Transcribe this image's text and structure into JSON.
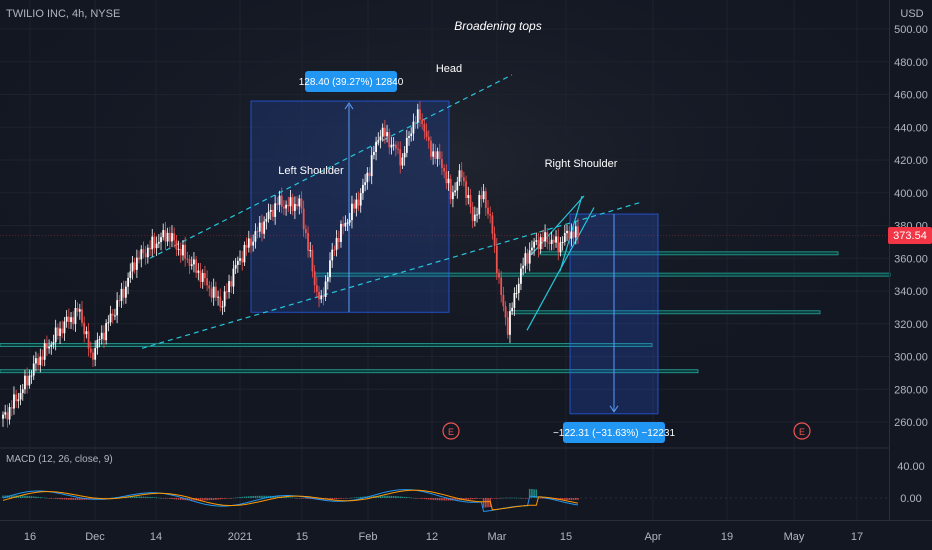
{
  "header": {
    "symbol": "TWILIO INC, 4h, NYSE",
    "currency": "USD",
    "title": "Broadening tops"
  },
  "annotations": {
    "head": "Head",
    "left_shoulder": "Left Shoulder",
    "right_shoulder": "Right Shoulder",
    "measure_up": "128.40 (39.27%) 12840",
    "measure_down": "−122.31 (−31.63%) −12231",
    "earnings_marker": "E"
  },
  "price_axis": {
    "ticks": [
      "500.00",
      "480.00",
      "460.00",
      "440.00",
      "420.00",
      "400.00",
      "380.00",
      "360.00",
      "340.00",
      "320.00",
      "300.00",
      "280.00",
      "260.00"
    ],
    "last_price": "373.54"
  },
  "indicator": {
    "label": "MACD (12, 26, close, 9)",
    "ticks": [
      "40.00",
      "0.00"
    ]
  },
  "time_axis": {
    "ticks": [
      "16",
      "Dec",
      "14",
      "2021",
      "15",
      "Feb",
      "12",
      "Mar",
      "15",
      "Apr",
      "19",
      "May",
      "17"
    ]
  },
  "colors": {
    "background": "#131722",
    "up": "#ffffff",
    "down": "#ef5350",
    "trendline": "#26c6da",
    "measure_box": "#2962ff",
    "macd_line": "#2196f3",
    "signal_line": "#ff9800",
    "last_price_badge": "#f23645"
  },
  "chart_data": {
    "type": "candlestick",
    "title": "Broadening tops",
    "ylabel": "USD",
    "ylim": [
      255,
      505
    ],
    "price_path": [
      [
        0,
        262
      ],
      [
        8,
        278
      ],
      [
        15,
        296
      ],
      [
        20,
        305
      ],
      [
        28,
        320
      ],
      [
        35,
        328
      ],
      [
        40,
        300
      ],
      [
        47,
        318
      ],
      [
        55,
        340
      ],
      [
        60,
        358
      ],
      [
        68,
        368
      ],
      [
        75,
        375
      ],
      [
        80,
        366
      ],
      [
        90,
        350
      ],
      [
        96,
        338
      ],
      [
        100,
        332
      ],
      [
        105,
        352
      ],
      [
        110,
        365
      ],
      [
        118,
        380
      ],
      [
        125,
        394
      ],
      [
        130,
        392
      ],
      [
        135,
        394
      ],
      [
        138,
        375
      ],
      [
        142,
        345
      ],
      [
        145,
        332
      ],
      [
        148,
        352
      ],
      [
        152,
        372
      ],
      [
        158,
        386
      ],
      [
        164,
        402
      ],
      [
        168,
        420
      ],
      [
        172,
        438
      ],
      [
        176,
        432
      ],
      [
        182,
        420
      ],
      [
        186,
        440
      ],
      [
        190,
        448
      ],
      [
        194,
        428
      ],
      [
        200,
        418
      ],
      [
        204,
        398
      ],
      [
        209,
        412
      ],
      [
        214,
        384
      ],
      [
        219,
        400
      ],
      [
        223,
        376
      ],
      [
        227,
        336
      ],
      [
        230,
        318
      ],
      [
        234,
        342
      ],
      [
        238,
        360
      ],
      [
        243,
        370
      ],
      [
        248,
        372
      ],
      [
        253,
        368
      ],
      [
        258,
        376
      ],
      [
        262,
        374
      ]
    ],
    "price_x_range": [
      0,
      262
    ],
    "measures": [
      {
        "label": "128.40 (39.27%) 12840",
        "from": 327,
        "to": 456
      },
      {
        "label": "−122.31 (−31.63%) −12231",
        "from": 387,
        "to": 265
      }
    ],
    "levels": [
      363,
      350,
      327,
      307,
      291
    ]
  }
}
